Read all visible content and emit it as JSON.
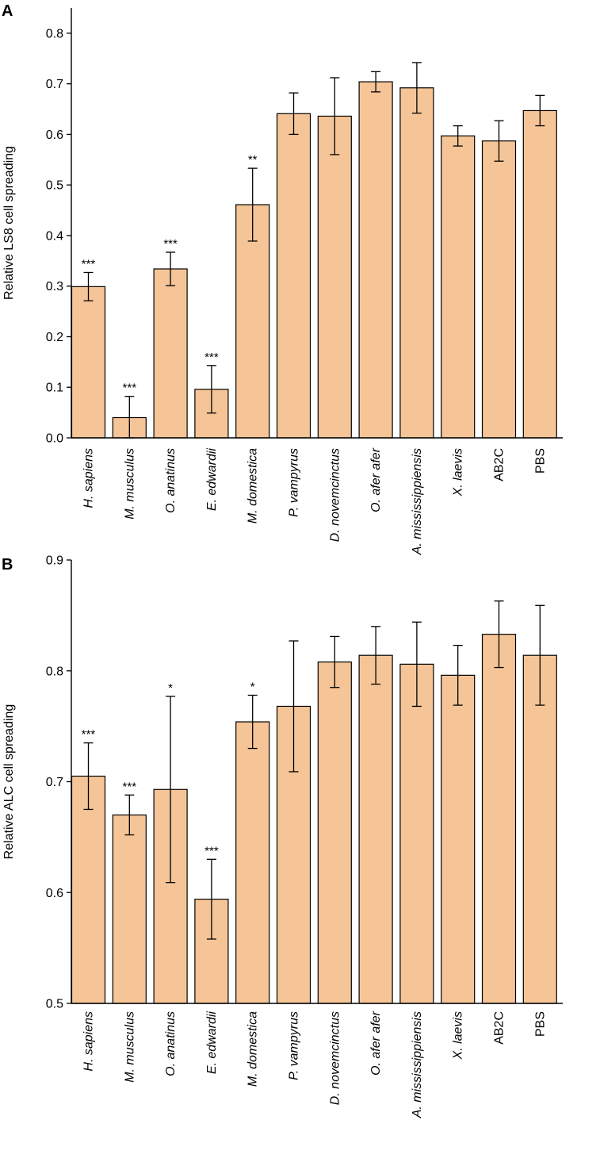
{
  "chart_data": [
    {
      "panel": "A",
      "type": "bar",
      "ylabel": "Relative LS8 cell spreading",
      "ylim": [
        0.0,
        0.85
      ],
      "yticks": [
        "0.0",
        "0.1",
        "0.2",
        "0.3",
        "0.4",
        "0.5",
        "0.6",
        "0.7",
        "0.8"
      ],
      "categories": [
        "H. sapiens",
        "M. musculus",
        "O. anatinus",
        "E. edwardii",
        "M. domestica",
        "P. vampyrus",
        "D. novemcinctus",
        "O. afer afer",
        "A. mississippiensis",
        "X. laevis",
        "AB2C",
        "PBS"
      ],
      "values": [
        0.299,
        0.04,
        0.334,
        0.096,
        0.461,
        0.641,
        0.636,
        0.704,
        0.692,
        0.597,
        0.587,
        0.647
      ],
      "errors": [
        0.028,
        0.042,
        0.033,
        0.047,
        0.072,
        0.041,
        0.076,
        0.02,
        0.05,
        0.02,
        0.04,
        0.03
      ],
      "significance": [
        "***",
        "***",
        "***",
        "***",
        "**",
        "",
        "",
        "",
        "",
        "",
        "",
        ""
      ],
      "bar_color": "#F5C597"
    },
    {
      "panel": "B",
      "type": "bar",
      "ylabel": "Relative ALC cell spreading",
      "ylim": [
        0.5,
        0.9
      ],
      "yticks": [
        "0.5",
        "0.6",
        "0.7",
        "0.8",
        "0.9"
      ],
      "categories": [
        "H. sapiens",
        "M. musculus",
        "O. anatinus",
        "E. edwardii",
        "M. domestica",
        "P. vampyrus",
        "D. novemcinctus",
        "O. afer afer",
        "A. mississippiensis",
        "X. laevis",
        "AB2C",
        "PBS"
      ],
      "values": [
        0.705,
        0.67,
        0.693,
        0.594,
        0.754,
        0.768,
        0.808,
        0.814,
        0.806,
        0.796,
        0.833,
        0.814
      ],
      "errors": [
        0.03,
        0.018,
        0.084,
        0.036,
        0.024,
        0.059,
        0.023,
        0.026,
        0.038,
        0.027,
        0.03,
        0.045
      ],
      "significance": [
        "***",
        "***",
        "*",
        "***",
        "*",
        "",
        "",
        "",
        "",
        "",
        "",
        ""
      ],
      "bar_color": "#F5C597"
    }
  ]
}
